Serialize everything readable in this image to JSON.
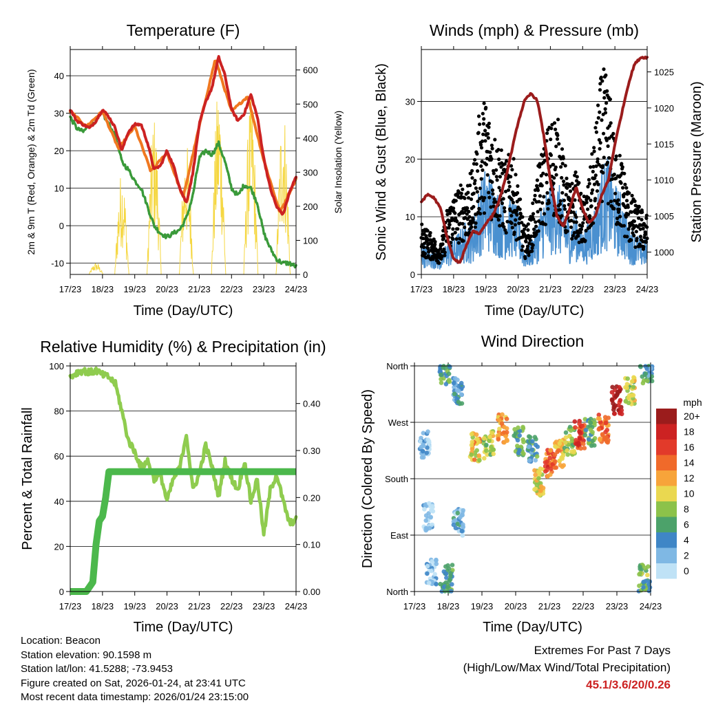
{
  "chart_data": [
    {
      "type": "line",
      "title": "Temperature (F)",
      "xlabel": "Time (Day/UTC)",
      "ylabel": "2m & 9m T (Red, Orange) & 2m Td (Green)",
      "y2label": "Solar Insolation (Yellow)",
      "xticks": [
        "17/23",
        "18/23",
        "19/23",
        "20/23",
        "21/23",
        "22/23",
        "23/23",
        "24/23"
      ],
      "ylim": [
        -13,
        47
      ],
      "yticks": [
        -10,
        0,
        10,
        20,
        30,
        40
      ],
      "y2lim": [
        0,
        660
      ],
      "y2ticks": [
        0,
        100,
        200,
        300,
        400,
        500,
        600
      ],
      "grid": true,
      "series": [
        {
          "name": "2m T",
          "color": "#cc2222",
          "x": [
            0,
            0.2,
            0.4,
            0.6,
            0.8,
            1.0,
            1.2,
            1.4,
            1.6,
            1.8,
            2.0,
            2.2,
            2.4,
            2.6,
            2.8,
            3.0,
            3.2,
            3.4,
            3.6,
            3.8,
            4.0,
            4.2,
            4.4,
            4.6,
            4.8,
            5.0,
            5.2,
            5.4,
            5.6,
            5.8,
            6.0,
            6.2,
            6.4,
            6.6,
            6.8,
            7.0
          ],
          "values": [
            31,
            28,
            27,
            26,
            28,
            31,
            29,
            26,
            20,
            25,
            27,
            27,
            22,
            15,
            16,
            20,
            16,
            10,
            6,
            14,
            27,
            33,
            37,
            45,
            40,
            31,
            28,
            30,
            35,
            29,
            18,
            10,
            5,
            3,
            9,
            13
          ]
        },
        {
          "name": "9m T",
          "color": "#f07820",
          "x": [
            0,
            0.5,
            1.0,
            1.5,
            2.0,
            2.5,
            3.0,
            3.5,
            4.0,
            4.5,
            5.0,
            5.5,
            6.0,
            6.5,
            7.0
          ],
          "values": [
            30.5,
            26.5,
            30.5,
            20.5,
            26.5,
            14.5,
            19.5,
            7.5,
            26.5,
            44.5,
            30.5,
            34.5,
            17.5,
            3.5,
            12.5
          ]
        },
        {
          "name": "2m Td",
          "color": "#3a9a3a",
          "x": [
            0,
            0.2,
            0.4,
            0.6,
            0.8,
            1.0,
            1.2,
            1.4,
            1.6,
            1.8,
            2.0,
            2.2,
            2.4,
            2.6,
            2.8,
            3.0,
            3.2,
            3.4,
            3.6,
            3.8,
            4.0,
            4.2,
            4.4,
            4.6,
            4.8,
            5.0,
            5.2,
            5.4,
            5.6,
            5.8,
            6.0,
            6.2,
            6.4,
            6.6,
            6.8,
            7.0
          ],
          "values": [
            29,
            26,
            25,
            27,
            28,
            30,
            27,
            24,
            17,
            15,
            12,
            10,
            5,
            0,
            -2,
            -3,
            -2,
            -1,
            2,
            8,
            18,
            20,
            19,
            22,
            17,
            10,
            8,
            11,
            10,
            6,
            -2,
            -6,
            -9,
            -10,
            -10,
            -11
          ]
        },
        {
          "name": "Solar Insolation",
          "color": "#f5d742",
          "axis": "right",
          "peaks": [
            {
              "day": 0.8,
              "value": 35
            },
            {
              "day": 1.6,
              "value": 310
            },
            {
              "day": 2.6,
              "value": 470
            },
            {
              "day": 3.6,
              "value": 390
            },
            {
              "day": 4.6,
              "value": 560
            },
            {
              "day": 5.6,
              "value": 530
            },
            {
              "day": 6.6,
              "value": 510
            }
          ]
        }
      ]
    },
    {
      "type": "line",
      "title": "Winds (mph) & Pressure (mb)",
      "xlabel": "Time (Day/UTC)",
      "ylabel": "Sonic Wind & Gust (Blue, Black)",
      "y2label": "Station Pressure (Maroon)",
      "xticks": [
        "17/23",
        "18/23",
        "19/23",
        "20/23",
        "21/23",
        "22/23",
        "23/23",
        "24/23"
      ],
      "ylim": [
        0,
        39
      ],
      "yticks": [
        0,
        10,
        20,
        30
      ],
      "y2lim": [
        996.9,
        1028.1
      ],
      "y2ticks": [
        1000,
        1005,
        1010,
        1015,
        1020,
        1025
      ],
      "grid": true,
      "series": [
        {
          "name": "Sonic Wind",
          "color": "#4a90d0",
          "x": [
            0,
            0.2,
            0.4,
            0.6,
            0.8,
            1.0,
            1.2,
            1.4,
            1.6,
            1.8,
            2.0,
            2.2,
            2.4,
            2.6,
            2.8,
            3.0,
            3.2,
            3.4,
            3.6,
            3.8,
            4.0,
            4.2,
            4.4,
            4.6,
            4.8,
            5.0,
            5.2,
            5.4,
            5.6,
            5.8,
            6.0,
            6.2,
            6.4,
            6.6,
            6.8,
            7.0
          ],
          "values": [
            4,
            3,
            3,
            2,
            4,
            4,
            5,
            6,
            6,
            10,
            12,
            11,
            9,
            8,
            9,
            7,
            3,
            4,
            6,
            9,
            10,
            11,
            8,
            6,
            7,
            5,
            6,
            8,
            12,
            13,
            10,
            9,
            6,
            5,
            4,
            4
          ]
        },
        {
          "name": "Gust",
          "color": "#000000",
          "x": [
            0,
            0.2,
            0.4,
            0.6,
            0.8,
            1.0,
            1.2,
            1.4,
            1.6,
            1.8,
            2.0,
            2.2,
            2.4,
            2.6,
            2.8,
            3.0,
            3.2,
            3.4,
            3.6,
            3.8,
            4.0,
            4.2,
            4.4,
            4.6,
            4.8,
            5.0,
            5.2,
            5.4,
            5.6,
            5.8,
            6.0,
            6.2,
            6.4,
            6.6,
            6.8,
            7.0
          ],
          "values": [
            7,
            6,
            5,
            4,
            9,
            11,
            12,
            13,
            14,
            22,
            24,
            20,
            18,
            15,
            17,
            12,
            6,
            8,
            14,
            18,
            21,
            22,
            16,
            12,
            14,
            10,
            13,
            20,
            28,
            26,
            18,
            16,
            12,
            10,
            9,
            8
          ]
        },
        {
          "name": "Station Pressure",
          "color": "#9b1c1c",
          "axis": "right",
          "x": [
            0,
            0.2,
            0.4,
            0.6,
            0.8,
            1.0,
            1.2,
            1.4,
            1.6,
            1.8,
            2.0,
            2.2,
            2.4,
            2.6,
            2.8,
            3.0,
            3.2,
            3.4,
            3.6,
            3.8,
            4.0,
            4.2,
            4.4,
            4.6,
            4.8,
            5.0,
            5.2,
            5.4,
            5.6,
            5.8,
            6.0,
            6.2,
            6.4,
            6.6,
            6.8,
            7.0
          ],
          "values": [
            1007,
            1008,
            1007.5,
            1006,
            1002,
            999,
            998.5,
            1001,
            1003,
            1002.5,
            1004,
            1005,
            1007,
            1010,
            1014,
            1018,
            1021,
            1022,
            1021,
            1016,
            1010,
            1005,
            1003.5,
            1006,
            1009,
            1006,
            1004,
            1005,
            1008,
            1010,
            1015,
            1019,
            1023,
            1026,
            1027,
            1027
          ]
        }
      ]
    },
    {
      "type": "line",
      "title": "Relative Humidity (%) & Precipitation (in)",
      "xlabel": "Time (Day/UTC)",
      "ylabel": "Percent & Total Rainfall",
      "xticks": [
        "17/23",
        "18/23",
        "19/23",
        "20/23",
        "21/23",
        "22/23",
        "23/23",
        "24/23"
      ],
      "ylim": [
        0,
        100
      ],
      "yticks": [
        0,
        20,
        40,
        60,
        80,
        100
      ],
      "y2lim": [
        0,
        0.48
      ],
      "y2ticks": [
        "0.00",
        "0.10",
        "0.20",
        "0.30",
        "0.40"
      ],
      "grid": true,
      "series": [
        {
          "name": "Relative Humidity",
          "color": "#8fcc4f",
          "x": [
            0,
            0.2,
            0.4,
            0.6,
            0.8,
            1.0,
            1.2,
            1.4,
            1.6,
            1.8,
            2.0,
            2.2,
            2.4,
            2.6,
            2.8,
            3.0,
            3.2,
            3.4,
            3.6,
            3.8,
            4.0,
            4.2,
            4.4,
            4.6,
            4.8,
            5.0,
            5.2,
            5.4,
            5.6,
            5.8,
            6.0,
            6.2,
            6.4,
            6.6,
            6.8,
            7.0
          ],
          "values": [
            95,
            97,
            98,
            97,
            98,
            96,
            95,
            92,
            80,
            67,
            62,
            55,
            58,
            50,
            52,
            40,
            50,
            55,
            70,
            45,
            52,
            65,
            55,
            42,
            58,
            50,
            45,
            58,
            40,
            50,
            25,
            45,
            52,
            40,
            30,
            32
          ]
        },
        {
          "name": "Total Precipitation",
          "color": "#4cb84c",
          "axis": "right",
          "x": [
            0,
            0.5,
            0.7,
            0.8,
            0.9,
            1.0,
            1.1,
            1.2,
            1.4,
            3,
            5,
            7
          ],
          "values": [
            0,
            0,
            0.02,
            0.1,
            0.15,
            0.16,
            0.2,
            0.255,
            0.255,
            0.255,
            0.255,
            0.255
          ]
        }
      ]
    },
    {
      "type": "scatter",
      "title": "Wind Direction",
      "xlabel": "Time (Day/UTC)",
      "ylabel": "Direction (Colored By Speed)",
      "xticks": [
        "17/23",
        "18/23",
        "19/23",
        "20/23",
        "21/23",
        "22/23",
        "23/23",
        "24/23"
      ],
      "ylim": [
        0,
        360
      ],
      "yticks": [
        {
          "value": 0,
          "label": "North"
        },
        {
          "value": 90,
          "label": "East"
        },
        {
          "value": 180,
          "label": "South"
        },
        {
          "value": 270,
          "label": "West"
        },
        {
          "value": 360,
          "label": "North"
        }
      ],
      "grid": true,
      "colorbar_title": "mph",
      "colorbar_labels": [
        "20+",
        "18",
        "16",
        "14",
        "12",
        "10",
        "8",
        "6",
        "4",
        "2",
        "0"
      ],
      "colorbar_colors": [
        "#9b1c1c",
        "#cc2222",
        "#e23a2a",
        "#f06a2a",
        "#f7a43a",
        "#ead850",
        "#8cc24a",
        "#4ca26a",
        "#3f86c6",
        "#7fb8e4",
        "#bfe2f6"
      ],
      "clusters": [
        {
          "day": 0.3,
          "dir": 235,
          "speed": 2
        },
        {
          "day": 0.4,
          "dir": 120,
          "speed": 1
        },
        {
          "day": 0.5,
          "dir": 30,
          "speed": 2
        },
        {
          "day": 0.9,
          "dir": 350,
          "speed": 6
        },
        {
          "day": 1.0,
          "dir": 20,
          "speed": 5
        },
        {
          "day": 1.3,
          "dir": 110,
          "speed": 3
        },
        {
          "day": 1.3,
          "dir": 320,
          "speed": 4
        },
        {
          "day": 1.8,
          "dir": 230,
          "speed": 11
        },
        {
          "day": 2.2,
          "dir": 235,
          "speed": 9
        },
        {
          "day": 2.6,
          "dir": 260,
          "speed": 13
        },
        {
          "day": 3.1,
          "dir": 240,
          "speed": 6
        },
        {
          "day": 3.5,
          "dir": 230,
          "speed": 5
        },
        {
          "day": 3.7,
          "dir": 175,
          "speed": 10
        },
        {
          "day": 4.0,
          "dir": 205,
          "speed": 15
        },
        {
          "day": 4.3,
          "dir": 220,
          "speed": 12
        },
        {
          "day": 4.6,
          "dir": 240,
          "speed": 8
        },
        {
          "day": 4.9,
          "dir": 250,
          "speed": 16
        },
        {
          "day": 5.2,
          "dir": 255,
          "speed": 7
        },
        {
          "day": 5.6,
          "dir": 260,
          "speed": 14
        },
        {
          "day": 6.0,
          "dir": 305,
          "speed": 19
        },
        {
          "day": 6.4,
          "dir": 320,
          "speed": 9
        },
        {
          "day": 6.8,
          "dir": 20,
          "speed": 7
        },
        {
          "day": 6.9,
          "dir": 355,
          "speed": 5
        }
      ]
    }
  ],
  "station": {
    "location": "Location: Beacon",
    "elevation": "Station elevation: 90.1598 m",
    "latlon": "Station lat/lon: 41.5288; -73.9453",
    "created": "Figure created on Sat, 2026-01-24, at 23:41 UTC",
    "timestamp": "Most recent data timestamp: 2026/01/24 23:15:00"
  },
  "extremes": {
    "line1": "Extremes For Past 7 Days",
    "line2": "(High/Low/Max Wind/Total Precipitation)",
    "values": "45.1/3.6/20/0.26"
  }
}
